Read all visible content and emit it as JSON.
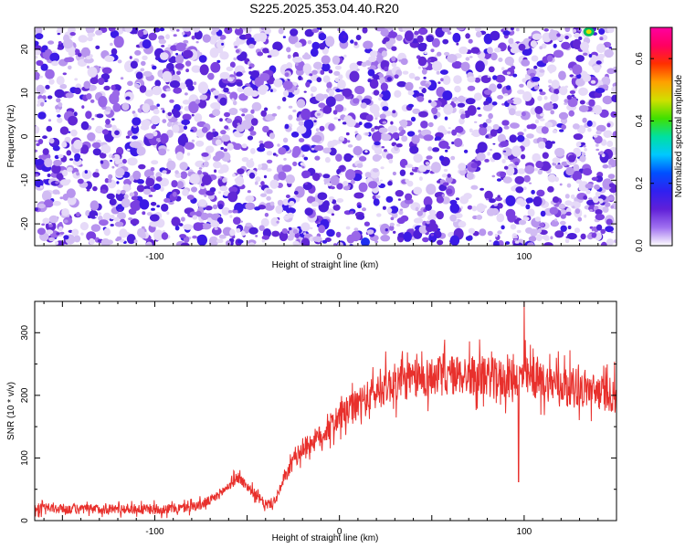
{
  "figure": {
    "title": "S225.2025.353.04.40.R20"
  },
  "chart_data": [
    {
      "type": "heatmap",
      "xlabel": "Height of straight line (km)",
      "ylabel": "Frequency (Hz)",
      "xlim": [
        -165,
        150
      ],
      "ylim": [
        -25,
        25
      ],
      "x_ticks": [
        -100,
        0,
        100
      ],
      "y_ticks": [
        -20,
        -10,
        0,
        10,
        20
      ],
      "colorbar": {
        "label": "Normalized spectral amplitude",
        "range": [
          0.0,
          0.7
        ],
        "ticks": [
          0.0,
          0.2,
          0.4,
          0.6
        ],
        "colors": [
          "#ffffff",
          "#a070f0",
          "#6020d8",
          "#3020f0",
          "#0050ff",
          "#00c8ff",
          "#00e0a0",
          "#40e000",
          "#d0e000",
          "#ffa000",
          "#ff3000",
          "#ff0060",
          "#ff00a0"
        ]
      },
      "description_stats": {
        "background_amplitude_range": [
          0.0,
          0.15
        ],
        "peak_at": {
          "x": 135,
          "y": 24
        }
      }
    },
    {
      "type": "line",
      "xlabel": "Height of straight line (km)",
      "ylabel": "SNR (10 * v/v)",
      "xlim": [
        -165,
        150
      ],
      "ylim": [
        0,
        350
      ],
      "x_ticks": [
        -100,
        0,
        100
      ],
      "y_ticks": [
        0,
        100,
        200,
        300
      ],
      "series": [
        {
          "color": "#e8302c",
          "x": [
            -165,
            -140,
            -120,
            -100,
            -85,
            -75,
            -68,
            -60,
            -55,
            -50,
            -45,
            -40,
            -35,
            -30,
            -25,
            -20,
            -15,
            -10,
            -5,
            0,
            5,
            10,
            15,
            20,
            25,
            30,
            40,
            50,
            60,
            70,
            80,
            90,
            95,
            100,
            105,
            110,
            120,
            130,
            140,
            150
          ],
          "y": [
            20,
            18,
            19,
            18,
            20,
            25,
            35,
            55,
            70,
            55,
            40,
            25,
            30,
            65,
            95,
            115,
            125,
            135,
            150,
            165,
            175,
            185,
            195,
            205,
            215,
            220,
            225,
            230,
            232,
            232,
            230,
            225,
            230,
            230,
            225,
            222,
            218,
            212,
            205,
            200
          ]
        }
      ],
      "annotations": {
        "spike_max": {
          "x": 100,
          "y": 350
        },
        "spike_min": {
          "x": 97,
          "y": 62
        }
      }
    }
  ]
}
